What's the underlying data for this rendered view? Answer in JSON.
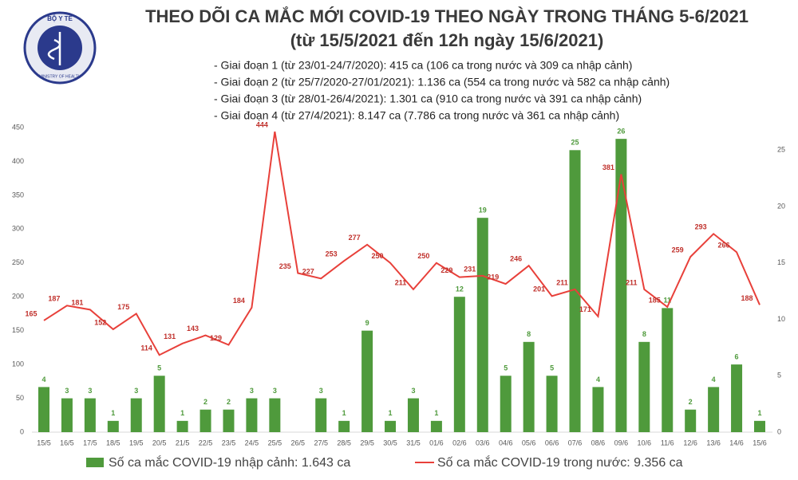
{
  "logo": {
    "text": "BỘ Y TẾ",
    "subtext": "MINISTRY OF HEALTH"
  },
  "chart_data": {
    "type": "bar-line",
    "title": "THEO DÕI CA MẮC MỚI COVID-19 THEO NGÀY TRONG THÁNG 5-6/2021",
    "subtitle": "(từ 15/5/2021 đến 12h ngày 15/6/2021)",
    "annotations": [
      "- Giai đoạn 1 (từ 23/01-24/7/2020): 415 ca (106 ca trong nước và 309 ca nhập cảnh)",
      "- Giai đoạn 2 (từ 25/7/2020-27/01/2021): 1.136 ca (554 ca trong nước và 582 ca nhập cảnh)",
      "- Giai đoạn 3 (từ 28/01-26/4/2021): 1.301 ca (910 ca trong nước và 391 ca nhập cảnh)",
      "- Giai đoạn 4 (từ 27/4/2021): 8.147 ca (7.786 ca trong nước và 361 ca nhập cảnh)"
    ],
    "categories": [
      "15/5",
      "16/5",
      "17/5",
      "18/5",
      "19/5",
      "20/5",
      "21/5",
      "22/5",
      "23/5",
      "24/5",
      "25/5",
      "26/5",
      "27/5",
      "28/5",
      "29/5",
      "30/5",
      "31/5",
      "01/6",
      "02/6",
      "03/6",
      "04/6",
      "05/6",
      "06/6",
      "07/6",
      "08/6",
      "09/6",
      "10/6",
      "11/6",
      "12/6",
      "13/6",
      "14/6",
      "15/6"
    ],
    "series": [
      {
        "name": "Số ca mắc COVID-19 nhập cảnh: 1.643 ca",
        "type": "bar",
        "axis": "y2",
        "color": "#4f9a3c",
        "values": [
          4,
          3,
          3,
          1,
          3,
          5,
          1,
          2,
          2,
          3,
          3,
          null,
          3,
          1,
          9,
          1,
          3,
          1,
          12,
          19,
          5,
          8,
          5,
          25,
          4,
          26,
          8,
          11,
          2,
          4,
          6,
          1
        ]
      },
      {
        "name": "Số ca mắc COVID-19 trong nước: 9.356 ca",
        "type": "line",
        "axis": "y",
        "color": "#e8403a",
        "values": [
          165,
          187,
          181,
          152,
          175,
          114,
          131,
          143,
          129,
          184,
          444,
          235,
          227,
          253,
          277,
          250,
          211,
          250,
          229,
          231,
          219,
          246,
          201,
          211,
          171,
          381,
          211,
          185,
          259,
          293,
          266,
          188
        ]
      }
    ],
    "ylim": [
      0,
      450
    ],
    "yticks": [
      0,
      50,
      100,
      150,
      200,
      250,
      300,
      350,
      400,
      450
    ],
    "y2lim": [
      0,
      27
    ],
    "y2ticks": [
      0,
      5,
      10,
      15,
      20,
      25
    ]
  }
}
